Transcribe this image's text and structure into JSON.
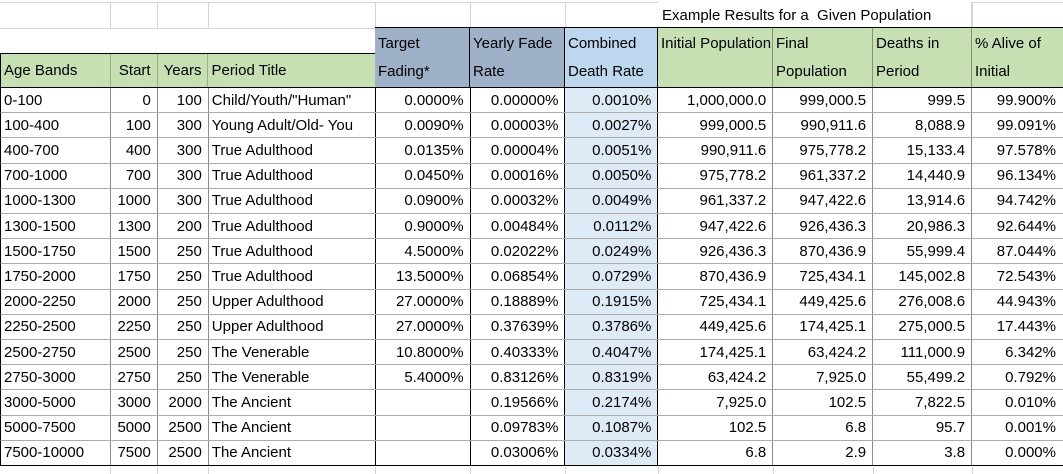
{
  "title": "Example Results for a  Given Population",
  "colors": {
    "header_green": "#C6E0B4",
    "header_blue_gray": "#9FB1C8",
    "header_light_blue": "#BDD7EE",
    "combined_column_fill": "#DEEAF6",
    "grid_light": "#d6d6d6",
    "grid_inner": "#8c8c8c",
    "row_line": "#ababab",
    "border_black": "#000000"
  },
  "columns": [
    {
      "key": "age-bands",
      "label": "Age Bands"
    },
    {
      "key": "start",
      "label": "Start"
    },
    {
      "key": "years",
      "label": "Years"
    },
    {
      "key": "period-title",
      "label": "Period Title"
    },
    {
      "key": "target-fading",
      "label": "Target Fading*"
    },
    {
      "key": "yearly-fade-rate",
      "label": "Yearly Fade Rate"
    },
    {
      "key": "combined-death-rate",
      "label": "Combined Death Rate"
    },
    {
      "key": "initial-population",
      "label": "Initial Population"
    },
    {
      "key": "final-population",
      "label": "Final Population"
    },
    {
      "key": "deaths-in-period",
      "label": "Deaths in Period"
    },
    {
      "key": "pct-alive-of-initial",
      "label": "% Alive of Initial"
    }
  ],
  "rows": [
    [
      "0-100",
      "0",
      "100",
      "Child/Youth/\"Human\"",
      "0.0000%",
      "0.00000%",
      "0.0010%",
      "1,000,000.0",
      "999,000.5",
      "999.5",
      "99.900%"
    ],
    [
      "100-400",
      "100",
      "300",
      "Young Adult/Old- You",
      "0.0090%",
      "0.00003%",
      "0.0027%",
      "999,000.5",
      "990,911.6",
      "8,088.9",
      "99.091%"
    ],
    [
      "400-700",
      "400",
      "300",
      "True Adulthood",
      "0.0135%",
      "0.00004%",
      "0.0051%",
      "990,911.6",
      "975,778.2",
      "15,133.4",
      "97.578%"
    ],
    [
      "700-1000",
      "700",
      "300",
      "True Adulthood",
      "0.0450%",
      "0.00016%",
      "0.0050%",
      "975,778.2",
      "961,337.2",
      "14,440.9",
      "96.134%"
    ],
    [
      "1000-1300",
      "1000",
      "300",
      "True Adulthood",
      "0.0900%",
      "0.00032%",
      "0.0049%",
      "961,337.2",
      "947,422.6",
      "13,914.6",
      "94.742%"
    ],
    [
      "1300-1500",
      "1300",
      "200",
      "True Adulthood",
      "0.9000%",
      "0.00484%",
      "0.0112%",
      "947,422.6",
      "926,436.3",
      "20,986.3",
      "92.644%"
    ],
    [
      "1500-1750",
      "1500",
      "250",
      "True Adulthood",
      "4.5000%",
      "0.02022%",
      "0.0249%",
      "926,436.3",
      "870,436.9",
      "55,999.4",
      "87.044%"
    ],
    [
      "1750-2000",
      "1750",
      "250",
      "True Adulthood",
      "13.5000%",
      "0.06854%",
      "0.0729%",
      "870,436.9",
      "725,434.1",
      "145,002.8",
      "72.543%"
    ],
    [
      "2000-2250",
      "2000",
      "250",
      "Upper Adulthood",
      "27.0000%",
      "0.18889%",
      "0.1915%",
      "725,434.1",
      "449,425.6",
      "276,008.6",
      "44.943%"
    ],
    [
      "2250-2500",
      "2250",
      "250",
      "Upper Adulthood",
      "27.0000%",
      "0.37639%",
      "0.3786%",
      "449,425.6",
      "174,425.1",
      "275,000.5",
      "17.443%"
    ],
    [
      "2500-2750",
      "2500",
      "250",
      "The Venerable",
      "10.8000%",
      "0.40333%",
      "0.4047%",
      "174,425.1",
      "63,424.2",
      "111,000.9",
      "6.342%"
    ],
    [
      "2750-3000",
      "2750",
      "250",
      "The Venerable",
      "5.4000%",
      "0.83126%",
      "0.8319%",
      "63,424.2",
      "7,925.0",
      "55,499.2",
      "0.792%"
    ],
    [
      "3000-5000",
      "3000",
      "2000",
      "The Ancient",
      "",
      "0.19566%",
      "0.2174%",
      "7,925.0",
      "102.5",
      "7,822.5",
      "0.010%"
    ],
    [
      "5000-7500",
      "5000",
      "2500",
      "The Ancient",
      "",
      "0.09783%",
      "0.1087%",
      "102.5",
      "6.8",
      "95.7",
      "0.001%"
    ],
    [
      "7500-10000",
      "7500",
      "2500",
      "The Ancient",
      "",
      "0.03006%",
      "0.0334%",
      "6.8",
      "2.9",
      "3.8",
      "0.000%"
    ]
  ]
}
